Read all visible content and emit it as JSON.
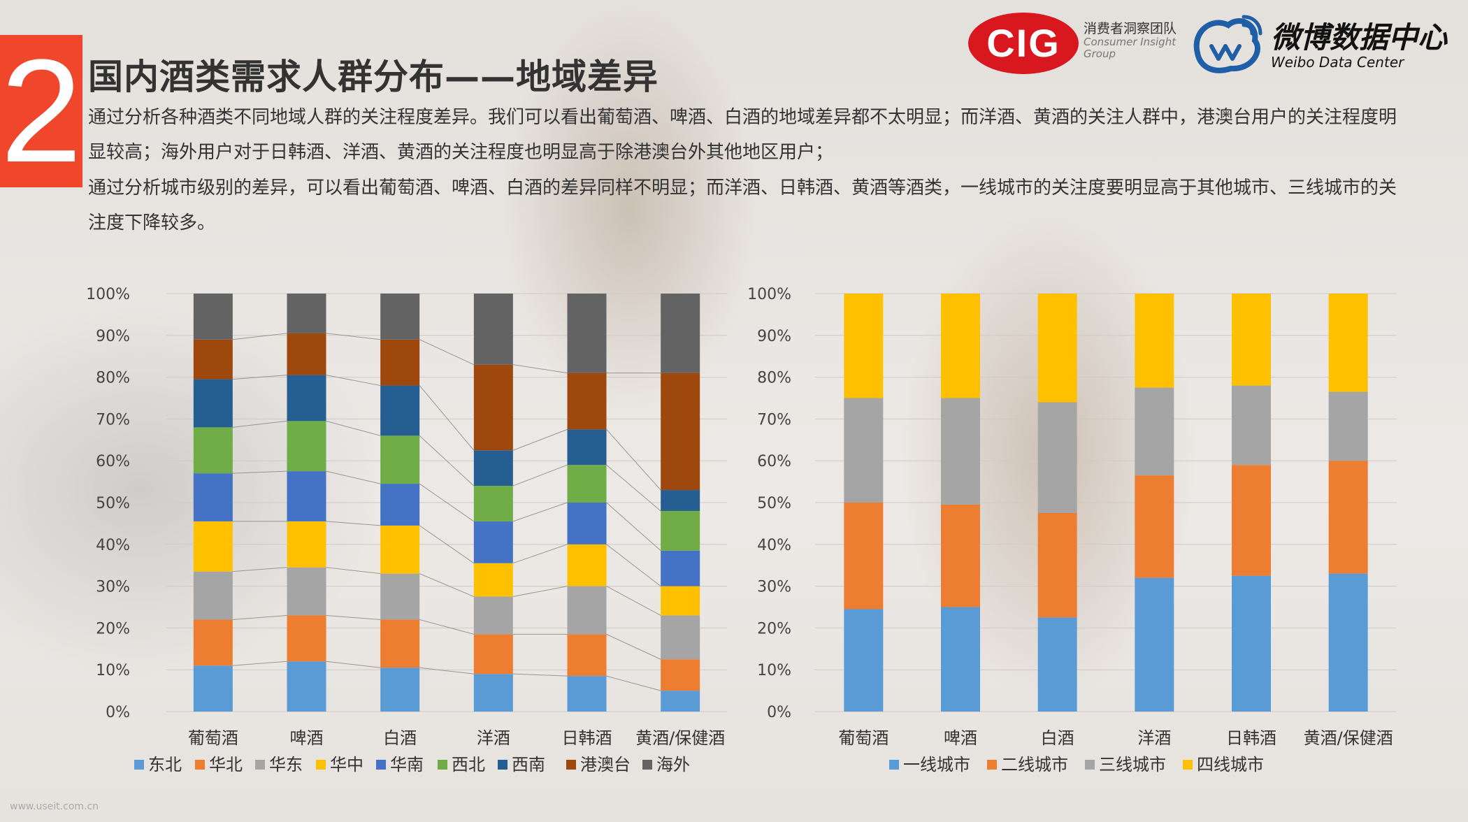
{
  "header": {
    "section_number": "2",
    "title": "国内酒类需求人群分布——地域差异",
    "paragraph_1": "通过分析各种酒类不同地域人群的关注程度差异。我们可以看出葡萄酒、啤酒、白酒的地域差异都不太明显；而洋酒、黄酒的关注人群中，港澳台用户的关注程度明显较高；海外用户对于日韩酒、洋酒、黄酒的关注程度也明显高于除港澳台外其他地区用户；",
    "paragraph_2": "通过分析城市级别的差异，可以看出葡萄酒、啤酒、白酒的差异同样不明显；而洋酒、日韩酒、黄酒等酒类，一线城市的关注度要明显高于其他城市、三线城市的关注度下降较多。"
  },
  "logos": {
    "cig_mark": "CIG",
    "cig_cn": "消费者洞察团队",
    "cig_en_1": "Consumer Insight",
    "cig_en_2": "Group",
    "weibo_cn": "微博数据中心",
    "weibo_en": "Weibo Data Center",
    "cig_color": "#d9171f",
    "weibo_color": "#1f5fa8"
  },
  "watermark": "www.useit.com.cn",
  "chart_data": [
    {
      "type": "bar",
      "stacked": "percent",
      "categories": [
        "葡萄酒",
        "啤酒",
        "白酒",
        "洋酒",
        "日韩酒",
        "黄酒/保健酒"
      ],
      "y_ticks": [
        "0%",
        "10%",
        "20%",
        "30%",
        "40%",
        "50%",
        "60%",
        "70%",
        "80%",
        "90%",
        "100%"
      ],
      "ylim": [
        0,
        100
      ],
      "series_lines": true,
      "legend_position": "bottom",
      "series": [
        {
          "name": "东北",
          "color": "#5b9bd5",
          "values": [
            11,
            12,
            10.5,
            9,
            8.5,
            5
          ]
        },
        {
          "name": "华北",
          "color": "#ed7d31",
          "values": [
            11,
            11,
            11.5,
            9.5,
            10,
            7.5
          ]
        },
        {
          "name": "华东",
          "color": "#a5a5a5",
          "values": [
            11.5,
            11.5,
            11,
            9,
            11.5,
            10.5
          ]
        },
        {
          "name": "华中",
          "color": "#ffc000",
          "values": [
            12,
            11,
            11.5,
            8,
            10,
            7
          ]
        },
        {
          "name": "华南",
          "color": "#4472c4",
          "values": [
            11.5,
            12,
            10,
            10,
            10,
            8.5
          ]
        },
        {
          "name": "西北",
          "color": "#70ad47",
          "values": [
            11,
            12,
            11.5,
            8.5,
            9,
            9.5
          ]
        },
        {
          "name": "西南",
          "color": "#255e91",
          "values": [
            11.5,
            11,
            12,
            8.5,
            8.5,
            5
          ]
        },
        {
          "name": "港澳台",
          "color": "#9e480e",
          "values": [
            9.5,
            10,
            11,
            20.5,
            13.5,
            28
          ]
        },
        {
          "name": "海外",
          "color": "#636363",
          "values": [
            11,
            9.5,
            11,
            17,
            19,
            19
          ]
        }
      ]
    },
    {
      "type": "bar",
      "stacked": "percent",
      "categories": [
        "葡萄酒",
        "啤酒",
        "白酒",
        "洋酒",
        "日韩酒",
        "黄酒/保健酒"
      ],
      "y_ticks": [
        "0%",
        "10%",
        "20%",
        "30%",
        "40%",
        "50%",
        "60%",
        "70%",
        "80%",
        "90%",
        "100%"
      ],
      "ylim": [
        0,
        100
      ],
      "legend_position": "bottom",
      "series": [
        {
          "name": "一线城市",
          "color": "#5b9bd5",
          "values": [
            24.5,
            25,
            22.5,
            32,
            32.5,
            33
          ]
        },
        {
          "name": "二线城市",
          "color": "#ed7d31",
          "values": [
            25.5,
            24.5,
            25,
            24.5,
            26.5,
            27
          ]
        },
        {
          "name": "三线城市",
          "color": "#a5a5a5",
          "values": [
            25,
            25.5,
            26.5,
            21,
            19,
            16.5
          ]
        },
        {
          "name": "四线城市",
          "color": "#ffc000",
          "values": [
            25,
            25,
            26,
            22.5,
            22,
            23.5
          ]
        }
      ]
    }
  ]
}
